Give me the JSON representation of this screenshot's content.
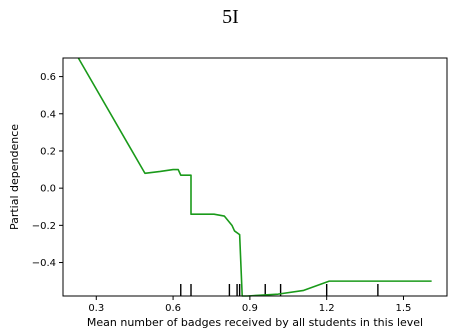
{
  "figure_label": "5I",
  "colors": {
    "line": "#1a9a1a",
    "rug": "#000000",
    "axis": "#000000"
  },
  "chart_data": {
    "type": "line",
    "title": "",
    "xlabel": "Mean number of badges received by all students in this level",
    "ylabel": "Partial dependence",
    "xlim": [
      0.17,
      1.67
    ],
    "ylim": [
      -0.58,
      0.7
    ],
    "xticks": [
      0.3,
      0.6,
      0.9,
      1.2,
      1.5
    ],
    "xtick_labels": [
      "0.3",
      "0.6",
      "0.9",
      "1.2",
      "1.5"
    ],
    "yticks": [
      -0.4,
      -0.2,
      0.0,
      0.2,
      0.4,
      0.6
    ],
    "ytick_labels": [
      "−0.4",
      "−0.2",
      "0.0",
      "0.2",
      "0.4",
      "0.6"
    ],
    "grid": false,
    "series": [
      {
        "x": [
          0.23,
          0.49,
          0.55,
          0.6,
          0.62,
          0.63,
          0.67,
          0.67,
          0.73,
          0.76,
          0.8,
          0.83,
          0.84,
          0.86,
          0.87,
          0.89,
          1.01,
          1.11,
          1.21,
          1.32,
          1.42,
          1.61
        ],
        "y": [
          0.7,
          0.08,
          0.09,
          0.1,
          0.1,
          0.07,
          0.07,
          -0.14,
          -0.14,
          -0.14,
          -0.15,
          -0.2,
          -0.23,
          -0.25,
          -0.58,
          -0.58,
          -0.57,
          -0.55,
          -0.5,
          -0.5,
          -0.5,
          -0.5
        ]
      }
    ],
    "rug": [
      0.63,
      0.67,
      0.82,
      0.85,
      0.86,
      0.96,
      1.02,
      1.2,
      1.4
    ]
  }
}
